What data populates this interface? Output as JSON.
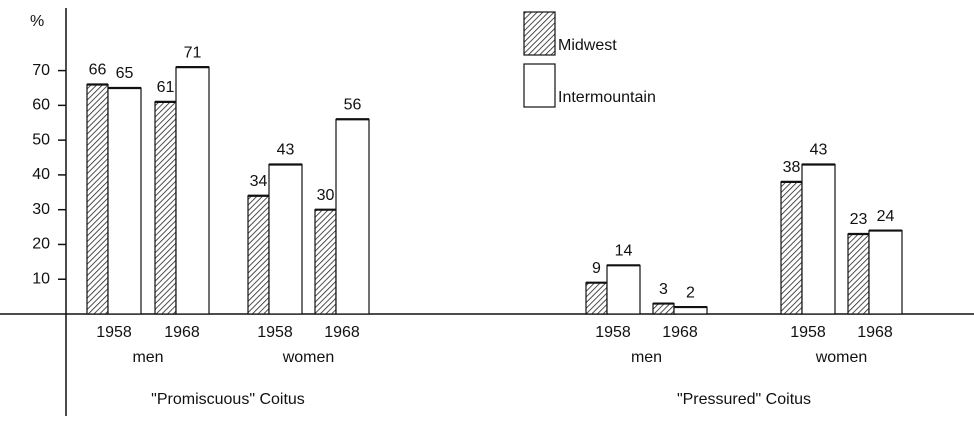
{
  "chart_data": {
    "type": "bar",
    "y_label": "%",
    "categories": [
      "1958",
      "1968",
      "1958",
      "1968",
      "1958",
      "1968",
      "1958",
      "1968"
    ],
    "group_labels": [
      "men",
      "women",
      "men",
      "women"
    ],
    "section_labels": [
      "\"Promiscuous\" Coitus",
      "\"Pressured\" Coitus"
    ],
    "series": [
      {
        "name": "Midwest",
        "color": "#222222",
        "pattern": "hatched",
        "values": [
          66,
          61,
          34,
          30,
          9,
          3,
          38,
          23
        ]
      },
      {
        "name": "Intermountain",
        "color": "#ffffff",
        "pattern": "solid",
        "values": [
          65,
          71,
          43,
          56,
          14,
          2,
          43,
          24
        ]
      }
    ],
    "ylim": [
      0,
      88
    ],
    "yticks": [
      10,
      20,
      30,
      40,
      50,
      60,
      70
    ],
    "legend": "top-center"
  }
}
